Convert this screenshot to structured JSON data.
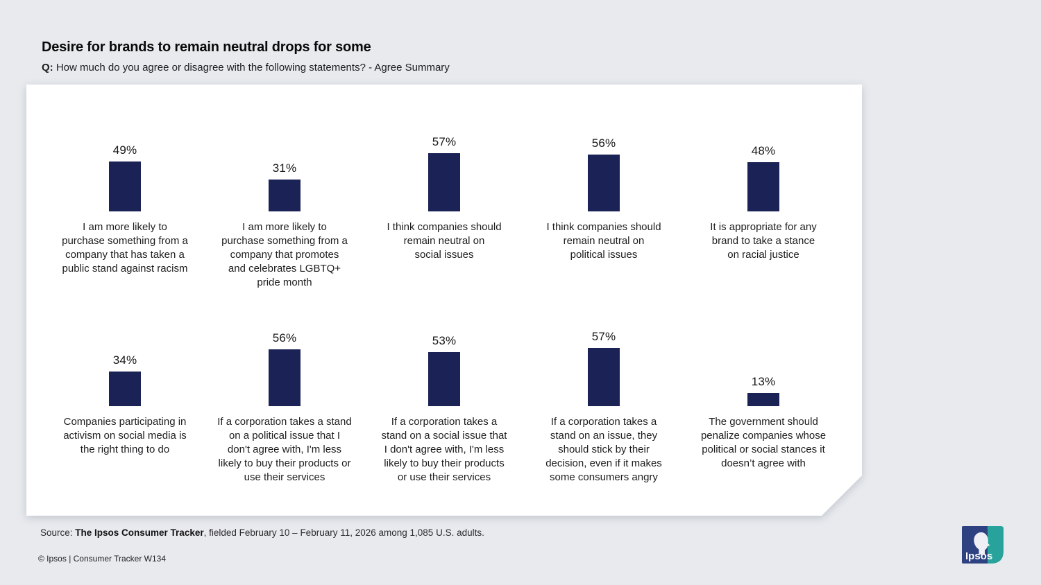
{
  "header": {
    "title": "Desire for brands to remain neutral drops for some",
    "q_prefix": "Q:",
    "q_text": " How much do you agree or disagree with the following statements? - Agree Summary"
  },
  "chart_data": {
    "type": "bar",
    "title": "Desire for brands to remain neutral drops for some",
    "unit": "percent agree",
    "ylim": [
      0,
      60
    ],
    "bar_color": "#1b2356",
    "layout": "2 rows x 5 columns, value labels above bars, captions below",
    "items": [
      {
        "value": 49,
        "pct_label": "49%",
        "label": "I am more likely to purchase something from a company that has taken a public stand against racism",
        "caption_lines": [
          "I am more likely to",
          "purchase something from a",
          "company that has taken a",
          "public stand against racism"
        ]
      },
      {
        "value": 31,
        "pct_label": "31%",
        "label": "I am more likely to purchase something from a company that promotes and celebrates LGBTQ+ pride month",
        "caption_lines": [
          "I am more likely to",
          "purchase something from a",
          "company that promotes",
          "and celebrates LGBTQ+",
          "pride month"
        ]
      },
      {
        "value": 57,
        "pct_label": "57%",
        "label": "I think companies should remain neutral on social issues",
        "caption_lines": [
          "I think companies should",
          "remain neutral on",
          "social issues"
        ]
      },
      {
        "value": 56,
        "pct_label": "56%",
        "label": "I think companies should remain neutral on political issues",
        "caption_lines": [
          "I think companies should",
          "remain neutral on",
          "political issues"
        ]
      },
      {
        "value": 48,
        "pct_label": "48%",
        "label": "It is appropriate for any brand to take a stance on racial justice",
        "caption_lines": [
          "It is appropriate for any",
          "brand to take a stance",
          "on racial justice"
        ]
      },
      {
        "value": 34,
        "pct_label": "34%",
        "label": "Companies participating in activism on social media is the right thing to do",
        "caption_lines": [
          "Companies participating in",
          "activism on social media is",
          "the right thing to do"
        ]
      },
      {
        "value": 56,
        "pct_label": "56%",
        "label": "If a corporation takes a stand on a political issue that I don't agree with, I'm less likely to buy their products or use their services",
        "caption_lines": [
          "If a corporation takes a stand",
          "on a political issue that I",
          "don't agree with, I'm less",
          "likely to buy their products or",
          "use their services"
        ]
      },
      {
        "value": 53,
        "pct_label": "53%",
        "label": "If a corporation takes a stand on a social issue that I don't agree with, I'm less likely to buy their products or use their services",
        "caption_lines": [
          "If a corporation takes a",
          "stand on a social issue that",
          "I don't agree with, I'm less",
          "likely to buy their products",
          "or use their services"
        ]
      },
      {
        "value": 57,
        "pct_label": "57%",
        "label": "If a corporation takes a stand on an issue, they should stick by their decision, even if it makes some consumers angry",
        "caption_lines": [
          "If a corporation takes a",
          "stand on an issue, they",
          "should stick by their",
          "decision, even if it makes",
          "some consumers angry"
        ]
      },
      {
        "value": 13,
        "pct_label": "13%",
        "label": "The government should penalize companies whose political or social stances it doesn't agree with",
        "caption_lines": [
          "The government should",
          "penalize companies whose",
          "political or social stances it",
          "doesn’t agree with"
        ]
      }
    ]
  },
  "footer": {
    "source_prefix": "Source: ",
    "source_bold": "The Ipsos Consumer Tracker",
    "source_rest": ", fielded February 10 – February 11, 2026 among 1,085 U.S. adults.",
    "copyright": "© Ipsos | Consumer Tracker W134"
  },
  "logo": {
    "text": "Ipsos",
    "blue": "#2e4181",
    "teal": "#28a39b",
    "silhouette": "#ffffff"
  },
  "colors": {
    "background": "#e8eaee",
    "panel": "#ffffff",
    "bar": "#1b2356"
  }
}
